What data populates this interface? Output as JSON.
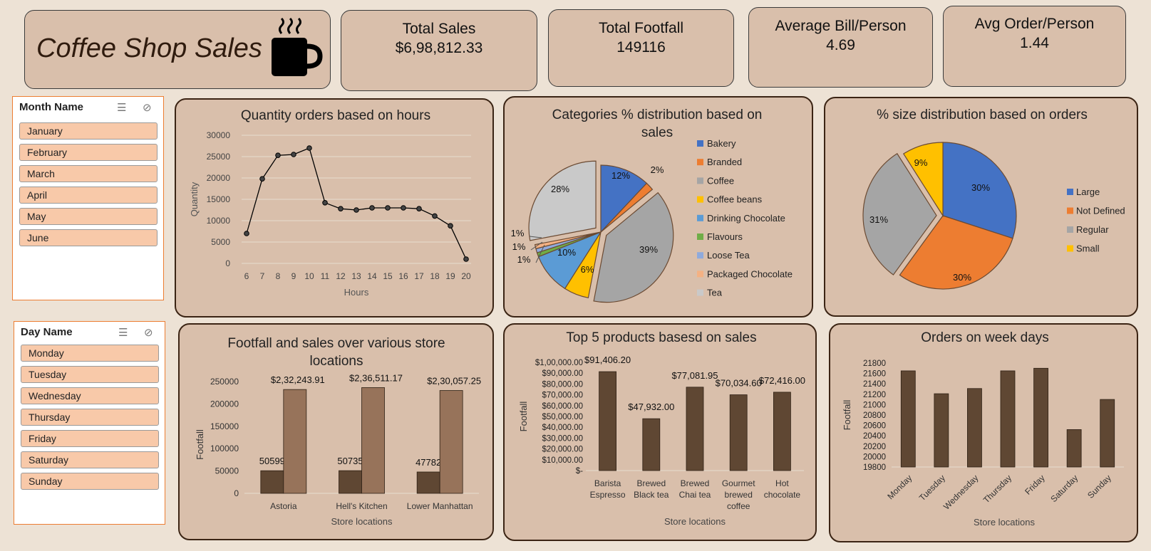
{
  "header": {
    "title": "Coffee Shop Sales",
    "icon": "coffee-mug-icon"
  },
  "kpis": [
    {
      "label": "Total Sales",
      "value": "$6,98,812.33"
    },
    {
      "label": "Total Footfall",
      "value": "149116"
    },
    {
      "label": "Average Bill/Person",
      "value": "4.69"
    },
    {
      "label": "Avg Order/Person",
      "value": "1.44"
    }
  ],
  "slicers": {
    "month": {
      "title": "Month Name",
      "items": [
        "January",
        "February",
        "March",
        "April",
        "May",
        "June"
      ]
    },
    "day": {
      "title": "Day Name",
      "items": [
        "Monday",
        "Tuesday",
        "Wednesday",
        "Thursday",
        "Friday",
        "Saturday",
        "Sunday"
      ]
    }
  },
  "chart_data": [
    {
      "id": "hours",
      "type": "line",
      "title": "Quantity orders based on hours",
      "xlabel": "Hours",
      "ylabel": "Quantity",
      "x": [
        6,
        7,
        8,
        9,
        10,
        11,
        12,
        13,
        14,
        15,
        16,
        17,
        18,
        19,
        20
      ],
      "values": [
        7000,
        19800,
        25300,
        25500,
        27000,
        14200,
        12800,
        12500,
        13000,
        13000,
        13000,
        12800,
        11100,
        8800,
        1000
      ],
      "ylim": [
        0,
        30000
      ],
      "yticks": [
        "0",
        "5000",
        "10000",
        "15000",
        "20000",
        "25000",
        "30000"
      ],
      "grid": true,
      "color": "#000000"
    },
    {
      "id": "categories",
      "type": "pie",
      "title": "Categories % distribution based on sales",
      "labels": [
        "Bakery",
        "Branded",
        "Coffee",
        "Coffee beans",
        "Drinking Chocolate",
        "Flavours",
        "Loose Tea",
        "Packaged Chocolate",
        "Tea"
      ],
      "values": [
        12,
        2,
        39,
        6,
        10,
        1,
        1,
        1,
        28
      ],
      "data_labels": [
        "12%",
        "2%",
        "39%",
        "6%",
        "10%",
        "1%",
        "1%",
        "1%",
        "28%"
      ],
      "colors": [
        "#4472c4",
        "#ed7d31",
        "#a5a5a5",
        "#ffc000",
        "#5b9bd5",
        "#70ad47",
        "#8faadc",
        "#f4b183",
        "#c9c9c9"
      ],
      "legend": "right"
    },
    {
      "id": "sizes",
      "type": "pie",
      "title": "% size distribution based on orders",
      "labels": [
        "Large",
        "Not Defined",
        "Regular",
        "Small"
      ],
      "values": [
        30,
        30,
        31,
        9
      ],
      "data_labels": [
        "30%",
        "30%",
        "31%",
        "9%"
      ],
      "colors": [
        "#4472c4",
        "#ed7d31",
        "#a5a5a5",
        "#ffc000"
      ],
      "legend": "right"
    },
    {
      "id": "stores",
      "type": "bar",
      "title": "Footfall  and sales over various store locations",
      "xlabel": "Store locations",
      "ylabel": "Footfall",
      "categories": [
        "Astoria",
        "Hell's Kitchen",
        "Lower Manhattan"
      ],
      "series": [
        {
          "values": [
            50599,
            50735,
            47782
          ],
          "labels": [
            "50599",
            "50735",
            "47782"
          ],
          "color": "#5f4733"
        },
        {
          "values": [
            232243.91,
            236511.17,
            230057.25
          ],
          "labels": [
            "$2,32,243.91",
            "$2,36,511.17",
            "$2,30,057.25"
          ],
          "color": "#97735a"
        }
      ],
      "ylim": [
        0,
        250000
      ],
      "yticks": [
        "0",
        "50000",
        "100000",
        "150000",
        "200000",
        "250000"
      ]
    },
    {
      "id": "products",
      "type": "bar",
      "title": "Top 5 products basesd on sales",
      "xlabel": "Store locations",
      "ylabel": "Footfall",
      "categories": [
        [
          "Barista",
          "Espresso"
        ],
        [
          "Brewed",
          "Black tea"
        ],
        [
          "Brewed",
          "Chai tea"
        ],
        [
          "Gourmet",
          "brewed",
          "coffee"
        ],
        [
          "Hot",
          "chocolate"
        ]
      ],
      "values": [
        91406.2,
        47932.0,
        77081.95,
        70034.6,
        72416.0
      ],
      "value_labels": [
        "$91,406.20",
        "$47,932.00",
        "$77,081.95",
        "$70,034.60",
        "$72,416.00"
      ],
      "ylim": [
        0,
        100000
      ],
      "yticks": [
        "$-",
        "$10,000.00",
        "$20,000.00",
        "$30,000.00",
        "$40,000.00",
        "$50,000.00",
        "$60,000.00",
        "$70,000.00",
        "$80,000.00",
        "$90,000.00",
        "$1,00,000.00"
      ],
      "color": "#5f4733"
    },
    {
      "id": "weekdays",
      "type": "bar",
      "title": "Orders on week days",
      "xlabel": "Store locations",
      "ylabel": "Footfall",
      "categories": [
        "Monday",
        "Tuesday",
        "Wednesday",
        "Thursday",
        "Friday",
        "Saturday",
        "Sunday"
      ],
      "values": [
        21650,
        21210,
        21310,
        21650,
        21700,
        20520,
        21100
      ],
      "ylim": [
        19800,
        21800
      ],
      "yticks": [
        "19800",
        "20000",
        "20200",
        "20400",
        "20600",
        "20800",
        "21000",
        "21200",
        "21400",
        "21600",
        "21800"
      ],
      "color": "#5f4733"
    }
  ]
}
